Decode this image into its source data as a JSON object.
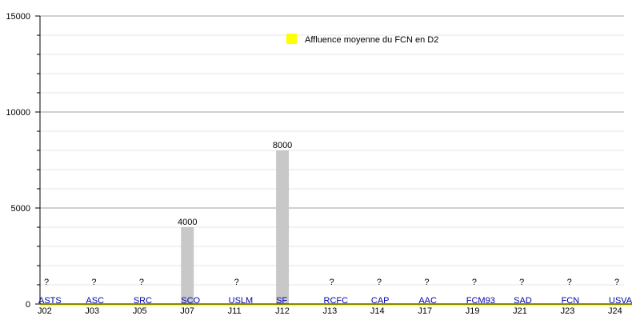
{
  "chart_data": {
    "type": "bar",
    "title": "",
    "xlabel": "",
    "ylabel": "",
    "ylim": [
      0,
      15000
    ],
    "y_major_ticks": [
      0,
      5000,
      10000,
      15000
    ],
    "y_minor_step": 1000,
    "grid": true,
    "categories": [
      "J02",
      "J03",
      "J05",
      "J07",
      "J11",
      "J12",
      "J13",
      "J14",
      "J17",
      "J19",
      "J21",
      "J23",
      "J24"
    ],
    "teams": [
      "ASTS",
      "ASC",
      "SRC",
      "SCO",
      "USLM",
      "SF",
      "RCFC",
      "CAP",
      "AAC",
      "FCM93",
      "SAD",
      "FCN",
      "USVA"
    ],
    "values": [
      null,
      null,
      null,
      4000,
      null,
      8000,
      null,
      null,
      null,
      null,
      null,
      null,
      null
    ],
    "value_labels": [
      "?",
      "?",
      "?",
      "4000",
      "?",
      "8000",
      "?",
      "?",
      "?",
      "?",
      "?",
      "?",
      "?"
    ],
    "average_value": 0,
    "legend": {
      "label": "Affluence moyenne du FCN en D2",
      "color": "#ffff00",
      "placement": "top-center"
    },
    "colors": {
      "bar": "#c8c8c8",
      "team_label": "#0000aa",
      "average_line": "#ffff00"
    }
  }
}
